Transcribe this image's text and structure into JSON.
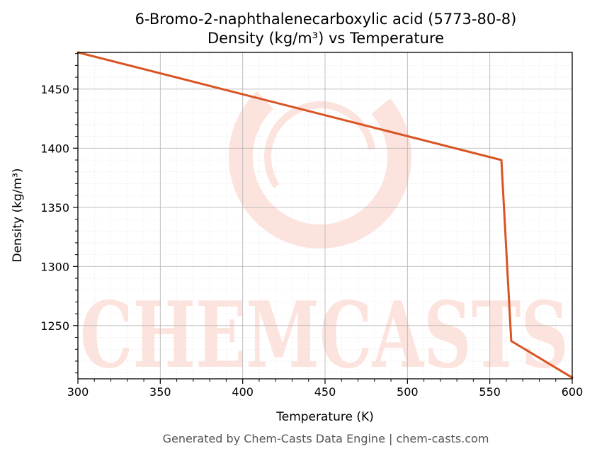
{
  "chart_data": {
    "type": "line",
    "title": "6-Bromo-2-naphthalenecarboxylic acid (5773-80-8)",
    "subtitle": "Density (kg/m³) vs Temperature",
    "xlabel": "Temperature (K)",
    "ylabel": "Density (kg/m³)",
    "xlim": [
      300,
      600
    ],
    "ylim": [
      1205,
      1481
    ],
    "x_ticks": [
      300,
      350,
      400,
      450,
      500,
      550,
      600
    ],
    "y_ticks": [
      1250,
      1300,
      1350,
      1400,
      1450
    ],
    "grid": true,
    "series": [
      {
        "color": "#d95423",
        "x": [
          300,
          557,
          563,
          600
        ],
        "y": [
          1481,
          1390,
          1237,
          1206
        ]
      }
    ]
  },
  "watermark": {
    "text": "CHEMCASTS",
    "color": "#fde3dd"
  },
  "footer": "Generated by Chem-Casts Data Engine | chem-casts.com"
}
